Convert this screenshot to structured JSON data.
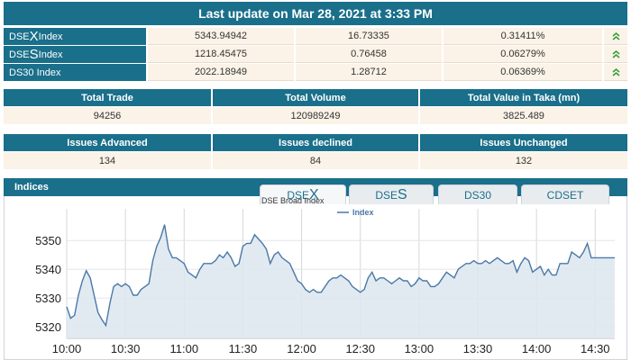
{
  "header": {
    "title": "Last update on Mar 28, 2021 at 3:33 PM"
  },
  "indices": [
    {
      "label_prefix": "DSE",
      "label_big": "X",
      "label_suffix": " Index",
      "value": "5343.94942",
      "change": "16.73335",
      "percent": "0.31411%",
      "trend": "up-arrows-icon"
    },
    {
      "label_prefix": "DSE",
      "label_big": "S",
      "label_suffix": " Index",
      "value": "1218.45475",
      "change": "0.76458",
      "percent": "0.06279%",
      "trend": "up-arrows-icon"
    },
    {
      "label_prefix": "DS30 Index",
      "label_big": "",
      "label_suffix": "",
      "value": "2022.18949",
      "change": "1.28712",
      "percent": "0.06369%",
      "trend": "up-arrows-icon"
    }
  ],
  "trade_table": {
    "headers": [
      "Total Trade",
      "Total Volume",
      "Total Value in Taka (mn)"
    ],
    "values": [
      "94256",
      "120989249",
      "3825.489"
    ]
  },
  "issues_table": {
    "headers": [
      "Issues Advanced",
      "Issues declined",
      "Issues Unchanged"
    ],
    "values": [
      "134",
      "84",
      "132"
    ]
  },
  "indices_panel": {
    "title": "Indices",
    "tabs": [
      {
        "prefix": "DSE",
        "big": "X"
      },
      {
        "prefix": "DSE",
        "big": "S"
      },
      {
        "prefix": "DS30",
        "big": ""
      },
      {
        "prefix": "CDSET",
        "big": ""
      }
    ],
    "active_tab": 0
  },
  "colors": {
    "teal": "#1a6f8a",
    "cream": "#fbf3e8",
    "line": "#4a78a8",
    "fill": "#dde6ef",
    "up": "#2e9e3a"
  },
  "chart_data": {
    "type": "area",
    "title": "DSE Broad Index",
    "xlabel": "",
    "ylabel": "",
    "legend": "Index",
    "legend_position": "top-center",
    "grid": true,
    "x_ticks": [
      "10:00",
      "10:30",
      "11:00",
      "11:30",
      "12:00",
      "12:30",
      "13:00",
      "13:30",
      "14:00",
      "14:30"
    ],
    "y_ticks": [
      5320,
      5330,
      5340,
      5350
    ],
    "ylim": [
      5316,
      5361
    ],
    "xlim_minutes": [
      0,
      280
    ],
    "series": [
      {
        "name": "Index",
        "x": [
          0,
          2,
          4,
          6,
          8,
          10,
          12,
          14,
          16,
          18,
          20,
          22,
          24,
          26,
          28,
          30,
          32,
          34,
          36,
          38,
          40,
          42,
          44,
          46,
          48,
          50,
          52,
          54,
          56,
          58,
          60,
          62,
          64,
          66,
          68,
          70,
          72,
          74,
          76,
          78,
          80,
          82,
          84,
          86,
          88,
          90,
          92,
          94,
          96,
          98,
          100,
          102,
          104,
          106,
          108,
          110,
          112,
          114,
          116,
          118,
          120,
          122,
          124,
          126,
          128,
          130,
          132,
          134,
          136,
          138,
          140,
          142,
          144,
          146,
          148,
          150,
          152,
          154,
          156,
          158,
          160,
          162,
          164,
          166,
          168,
          170,
          172,
          174,
          176,
          178,
          180,
          182,
          184,
          186,
          188,
          190,
          192,
          194,
          196,
          198,
          200,
          202,
          204,
          206,
          208,
          210,
          212,
          214,
          216,
          218,
          220,
          222,
          224,
          226,
          228,
          230,
          232,
          234,
          236,
          238,
          240,
          242,
          244,
          246,
          248,
          250,
          252,
          254,
          256,
          258,
          260,
          262,
          264,
          266,
          268,
          270,
          272,
          274,
          276,
          278,
          280
        ],
        "values": [
          5327,
          5323,
          5324,
          5331,
          5336,
          5339.5,
          5337,
          5331,
          5325,
          5322.5,
          5320.5,
          5328,
          5334,
          5335,
          5334,
          5335,
          5334,
          5331,
          5331,
          5333,
          5334,
          5335,
          5343,
          5348,
          5351,
          5355.5,
          5347,
          5344,
          5344,
          5343,
          5342,
          5339,
          5338,
          5337,
          5340,
          5342,
          5342,
          5342,
          5343,
          5345,
          5344,
          5346,
          5344,
          5341,
          5342,
          5348,
          5349,
          5349,
          5352,
          5350.5,
          5349,
          5347,
          5342,
          5345,
          5346,
          5344,
          5343,
          5342,
          5339,
          5336,
          5335,
          5333,
          5332,
          5333,
          5332,
          5332,
          5334,
          5336,
          5337,
          5337,
          5338,
          5337,
          5336,
          5334,
          5333,
          5332,
          5333,
          5337,
          5339,
          5336,
          5337,
          5337,
          5336,
          5335,
          5336,
          5337,
          5336,
          5336,
          5334,
          5335,
          5337,
          5336,
          5336,
          5334,
          5334,
          5335,
          5337,
          5339,
          5338,
          5337,
          5340,
          5341,
          5342,
          5342,
          5343,
          5342,
          5342,
          5343,
          5342,
          5343,
          5344,
          5343,
          5342,
          5342,
          5343,
          5339,
          5342,
          5344,
          5343,
          5339,
          5340,
          5341,
          5338,
          5340,
          5338,
          5338,
          5342,
          5342,
          5342,
          5346,
          5345,
          5344,
          5346,
          5349,
          5344,
          5344,
          5344,
          5344,
          5344,
          5344,
          5344
        ]
      }
    ]
  }
}
